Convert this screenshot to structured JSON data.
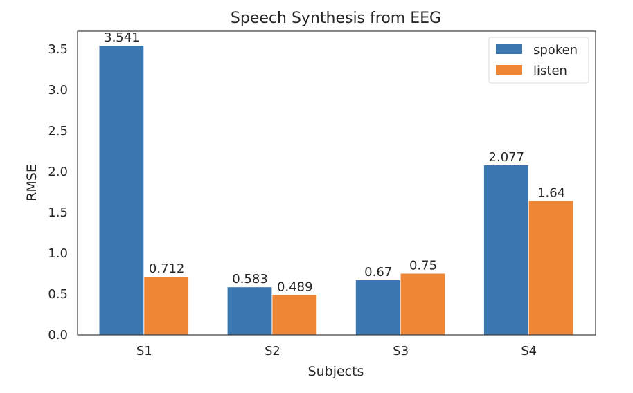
{
  "chart_data": {
    "type": "bar",
    "title": "Speech Synthesis from EEG",
    "xlabel": "Subjects",
    "ylabel": "RMSE",
    "categories": [
      "S1",
      "S2",
      "S3",
      "S4"
    ],
    "series": [
      {
        "name": "spoken",
        "color": "#3a76af",
        "values": [
          3.541,
          0.583,
          0.67,
          2.077
        ],
        "labels": [
          "3.541",
          "0.583",
          "0.67",
          "2.077"
        ]
      },
      {
        "name": "listen",
        "color": "#ef8636",
        "values": [
          0.712,
          0.489,
          0.75,
          1.64
        ],
        "labels": [
          "0.712",
          "0.489",
          "0.75",
          "1.64"
        ]
      }
    ],
    "ylim": [
      0,
      3.72
    ],
    "yticks": [
      "0.0",
      "0.5",
      "1.0",
      "1.5",
      "2.0",
      "2.5",
      "3.0",
      "3.5"
    ],
    "grid": false,
    "legend_position": "top-right"
  }
}
